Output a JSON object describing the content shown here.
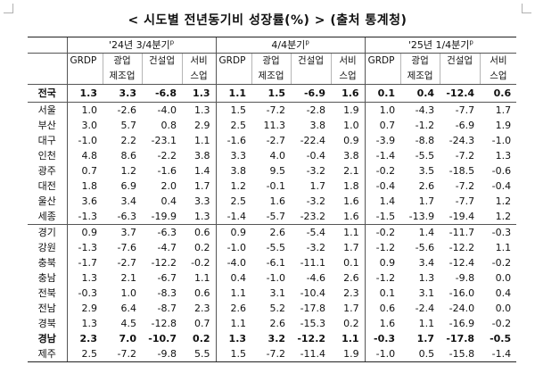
{
  "title": "< 시도별 전년동기비 성장률(%) > (출처 통계청)",
  "periods": [
    {
      "label": "'24년 3/4분기",
      "suffix": "p"
    },
    {
      "label": "4/4분기",
      "suffix": "p"
    },
    {
      "label": "'25년 1/4분기",
      "suffix": "p"
    }
  ],
  "columns": {
    "grdp": "GRDP",
    "mfg_top": "광업",
    "mfg_bottom": "제조업",
    "construction": "건설업",
    "svc_top": "서비",
    "svc_bottom": "스업"
  },
  "rows": [
    {
      "region": "전국",
      "v": [
        "1.3",
        "3.3",
        "-6.8",
        "1.3",
        "1.1",
        "1.5",
        "-6.9",
        "1.6",
        "0.1",
        "0.4",
        "-12.4",
        "0.6"
      ]
    },
    {
      "region": "서울",
      "v": [
        "1.0",
        "-2.6",
        "-4.0",
        "1.3",
        "1.5",
        "-7.2",
        "-2.8",
        "1.9",
        "1.0",
        "-4.3",
        "-7.7",
        "1.7"
      ]
    },
    {
      "region": "부산",
      "v": [
        "3.0",
        "5.7",
        "0.8",
        "2.9",
        "2.5",
        "11.3",
        "3.8",
        "1.0",
        "0.7",
        "-1.2",
        "-6.9",
        "1.9"
      ]
    },
    {
      "region": "대구",
      "v": [
        "-1.0",
        "2.2",
        "-23.1",
        "1.1",
        "-1.6",
        "-2.7",
        "-22.4",
        "0.9",
        "-3.9",
        "-8.8",
        "-24.3",
        "-1.0"
      ]
    },
    {
      "region": "인천",
      "v": [
        "4.8",
        "8.6",
        "-2.2",
        "3.8",
        "3.3",
        "4.0",
        "-0.4",
        "3.8",
        "-1.4",
        "-5.5",
        "-7.2",
        "1.3"
      ]
    },
    {
      "region": "광주",
      "v": [
        "0.7",
        "1.2",
        "-1.6",
        "1.4",
        "3.8",
        "9.5",
        "-3.2",
        "2.1",
        "-0.2",
        "3.5",
        "-18.5",
        "-0.6"
      ]
    },
    {
      "region": "대전",
      "v": [
        "1.8",
        "6.9",
        "2.0",
        "1.7",
        "1.2",
        "-0.1",
        "1.7",
        "1.8",
        "-0.4",
        "2.6",
        "-7.2",
        "-0.4"
      ]
    },
    {
      "region": "울산",
      "v": [
        "3.6",
        "3.4",
        "0.4",
        "3.3",
        "2.5",
        "1.6",
        "-3.2",
        "1.6",
        "1.4",
        "1.7",
        "-7.7",
        "1.2"
      ]
    },
    {
      "region": "세종",
      "v": [
        "-1.3",
        "-6.3",
        "-19.9",
        "1.3",
        "-1.4",
        "-5.7",
        "-23.2",
        "1.6",
        "-1.5",
        "-13.9",
        "-19.4",
        "1.2"
      ]
    },
    {
      "region": "경기",
      "v": [
        "0.9",
        "3.7",
        "-6.3",
        "0.6",
        "0.9",
        "2.6",
        "-5.4",
        "1.1",
        "-0.2",
        "1.4",
        "-11.7",
        "-0.3"
      ]
    },
    {
      "region": "강원",
      "v": [
        "-1.3",
        "-7.6",
        "-4.7",
        "0.2",
        "-1.0",
        "-5.5",
        "-3.2",
        "1.7",
        "-1.2",
        "-5.6",
        "-12.2",
        "1.1"
      ]
    },
    {
      "region": "충북",
      "v": [
        "-1.7",
        "-2.7",
        "-12.2",
        "-0.2",
        "-4.0",
        "-6.1",
        "-11.1",
        "0.1",
        "0.9",
        "3.4",
        "-12.4",
        "-0.2"
      ]
    },
    {
      "region": "충남",
      "v": [
        "1.3",
        "2.1",
        "-6.7",
        "1.1",
        "0.4",
        "-1.0",
        "-4.6",
        "2.6",
        "-1.2",
        "1.3",
        "-9.8",
        "0.0"
      ]
    },
    {
      "region": "전북",
      "v": [
        "-0.3",
        "1.0",
        "-8.3",
        "0.6",
        "1.1",
        "3.1",
        "-10.4",
        "2.3",
        "0.1",
        "3.1",
        "-16.0",
        "0.4"
      ]
    },
    {
      "region": "전남",
      "v": [
        "2.9",
        "6.4",
        "-8.7",
        "2.3",
        "2.6",
        "5.2",
        "-17.8",
        "1.7",
        "0.6",
        "-2.4",
        "-24.0",
        "0.0"
      ]
    },
    {
      "region": "경북",
      "v": [
        "1.3",
        "4.5",
        "-12.8",
        "0.7",
        "1.1",
        "2.6",
        "-15.3",
        "0.2",
        "1.6",
        "1.1",
        "-16.9",
        "-0.2"
      ]
    },
    {
      "region": "경남",
      "v": [
        "2.3",
        "7.0",
        "-10.7",
        "0.2",
        "1.3",
        "3.2",
        "-12.2",
        "1.1",
        "-0.3",
        "1.7",
        "-17.8",
        "-0.5"
      ]
    },
    {
      "region": "제주",
      "v": [
        "2.5",
        "-7.2",
        "-9.8",
        "5.5",
        "1.5",
        "-7.2",
        "-11.4",
        "1.9",
        "-1.0",
        "0.5",
        "-15.8",
        "-1.4"
      ]
    }
  ]
}
